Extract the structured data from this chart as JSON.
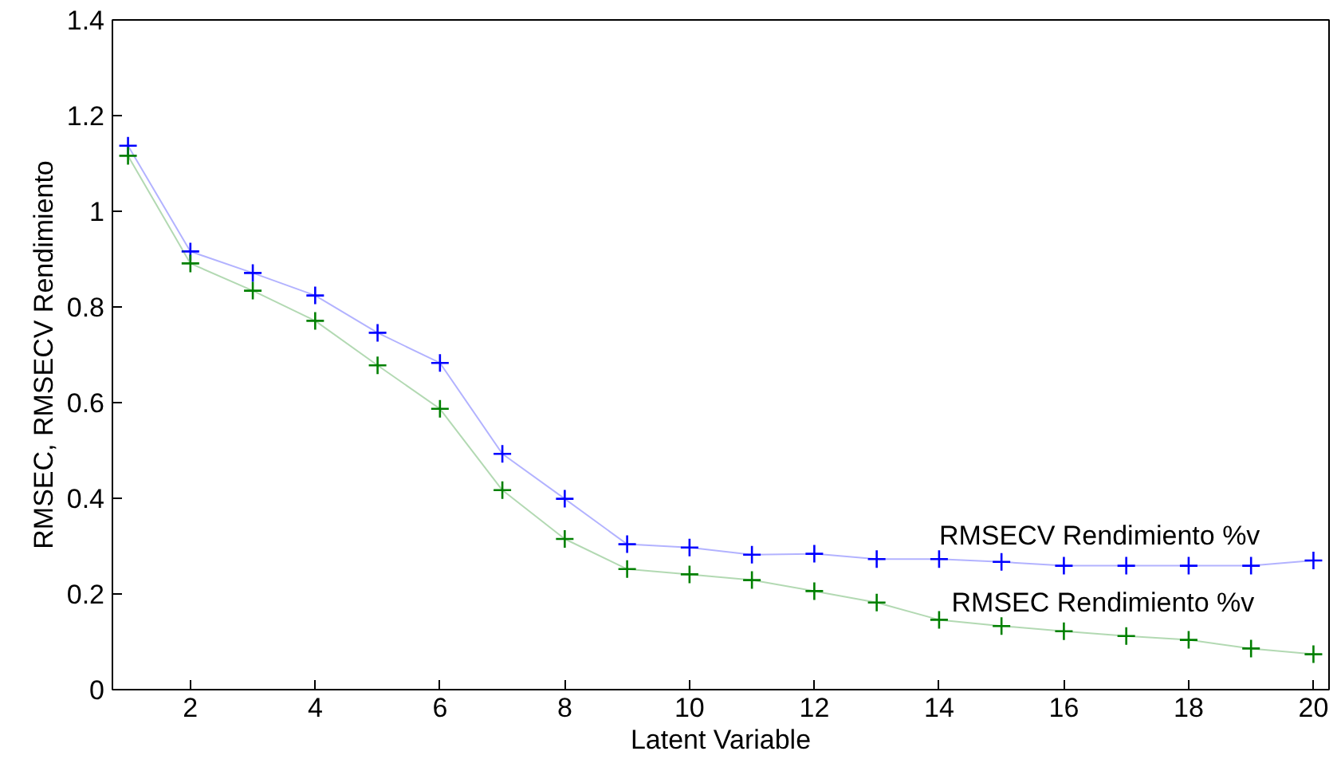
{
  "chart_data": {
    "type": "line",
    "xlabel": "Latent Variable",
    "ylabel": "RMSEC, RMSECV Rendimiento",
    "x": [
      1,
      2,
      3,
      4,
      5,
      6,
      7,
      8,
      9,
      10,
      11,
      12,
      13,
      14,
      15,
      16,
      17,
      18,
      19,
      20
    ],
    "series": [
      {
        "color": "#0000ff",
        "values": [
          1.137,
          0.916,
          0.871,
          0.824,
          0.746,
          0.683,
          0.493,
          0.399,
          0.304,
          0.297,
          0.282,
          0.284,
          0.273,
          0.273,
          0.267,
          0.259,
          0.259,
          0.259,
          0.259,
          0.27
        ]
      },
      {
        "color": "#008000",
        "values": [
          1.116,
          0.891,
          0.834,
          0.771,
          0.678,
          0.587,
          0.417,
          0.315,
          0.252,
          0.241,
          0.229,
          0.206,
          0.182,
          0.146,
          0.133,
          0.122,
          0.112,
          0.104,
          0.086,
          0.074
        ]
      }
    ],
    "annotations": [
      {
        "text": "RMSECV Rendimiento %v",
        "x": 14,
        "y": 0.29
      },
      {
        "text": "RMSEC Rendimiento %v",
        "x": 14.2,
        "y": 0.15
      }
    ],
    "xlim": [
      0.75,
      20.25
    ],
    "ylim": [
      0,
      1.4
    ],
    "xticks": [
      2,
      4,
      6,
      8,
      10,
      12,
      14,
      16,
      18,
      20
    ],
    "yticks": [
      0,
      0.2,
      0.4,
      0.6,
      0.8,
      1,
      1.2,
      1.4
    ],
    "marker": "cross",
    "grid": false
  }
}
